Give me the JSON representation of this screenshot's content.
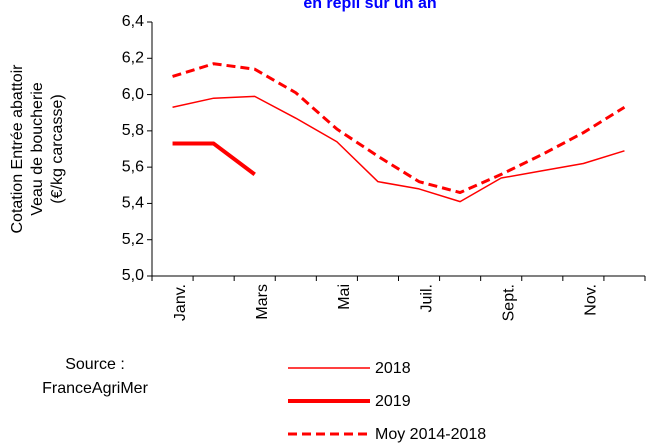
{
  "chart_data": {
    "type": "line",
    "title": "en repli sur un an",
    "y_label": [
      "Cotation Entrée abattoir",
      "Veau de boucherie",
      "(€/kg carcasse)"
    ],
    "source": [
      "Source :",
      "FranceAgriMer"
    ],
    "categories": [
      "Janv.",
      null,
      "Mars",
      null,
      "Mai",
      null,
      "Juil.",
      null,
      "Sept.",
      null,
      "Nov.",
      null
    ],
    "series": [
      {
        "name": "2018",
        "color": "#ff0000",
        "width": 1.5,
        "dash": false,
        "values": [
          5.93,
          5.98,
          5.99,
          5.87,
          5.74,
          5.52,
          5.48,
          5.41,
          5.54,
          5.58,
          5.62,
          5.69
        ]
      },
      {
        "name": "2019",
        "color": "#ff0000",
        "width": 4,
        "dash": false,
        "values": [
          5.73,
          5.73,
          5.56,
          null,
          null,
          null,
          null,
          null,
          null,
          null,
          null,
          null
        ]
      },
      {
        "name": "Moy 2014-2018",
        "color": "#ff0000",
        "width": 3,
        "dash": true,
        "values": [
          6.1,
          6.17,
          6.14,
          6.01,
          5.81,
          5.66,
          5.52,
          5.46,
          5.56,
          5.67,
          5.79,
          5.93
        ]
      }
    ],
    "ylim": [
      5.0,
      6.4
    ],
    "yticks": [
      {
        "value": 5.0,
        "label": "5,0"
      },
      {
        "value": 5.2,
        "label": "5,2"
      },
      {
        "value": 5.4,
        "label": "5,4"
      },
      {
        "value": 5.6,
        "label": "5,6"
      },
      {
        "value": 5.8,
        "label": "5,8"
      },
      {
        "value": 6.0,
        "label": "6,0"
      },
      {
        "value": 6.2,
        "label": "6,2"
      },
      {
        "value": 6.4,
        "label": "6,4"
      }
    ]
  }
}
